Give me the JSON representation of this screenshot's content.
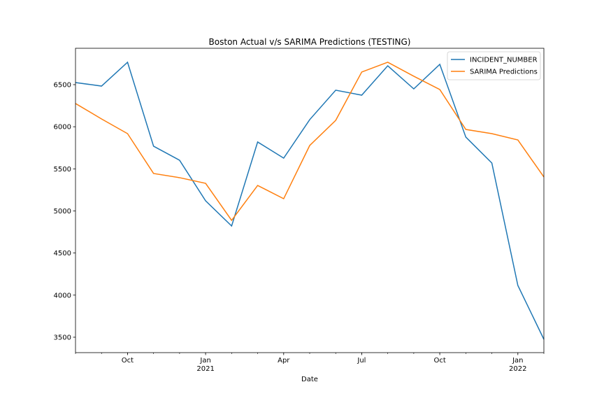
{
  "chart_data": {
    "type": "line",
    "title": "Boston Actual v/s SARIMA Predictions (TESTING)",
    "xlabel": "Date",
    "x": [
      "2020-08",
      "2020-09",
      "2020-10",
      "2020-11",
      "2020-12",
      "2021-01",
      "2021-02",
      "2021-03",
      "2021-04",
      "2021-05",
      "2021-06",
      "2021-07",
      "2021-08",
      "2021-09",
      "2021-10",
      "2021-11",
      "2021-12",
      "2022-01",
      "2022-02"
    ],
    "xticks": [
      {
        "value": "2020-10",
        "label": "Oct"
      },
      {
        "value": "2021-01",
        "label": "Jan\n2021"
      },
      {
        "value": "2021-04",
        "label": "Apr"
      },
      {
        "value": "2021-07",
        "label": "Jul"
      },
      {
        "value": "2021-10",
        "label": "Oct"
      },
      {
        "value": "2022-01",
        "label": "Jan\n2022"
      }
    ],
    "ylim": [
      3317,
      6932
    ],
    "yticks": [
      3500,
      4000,
      4500,
      5000,
      5500,
      6000,
      6500
    ],
    "legend": "upper right",
    "series": [
      {
        "name": "INCIDENT_NUMBER",
        "color": "#1f77b4",
        "values": [
          6525,
          6483,
          6766,
          5769,
          5602,
          5120,
          4821,
          5819,
          5627,
          6084,
          6434,
          6375,
          6724,
          6450,
          6741,
          5877,
          5569,
          4115,
          3475
        ]
      },
      {
        "name": "SARIMA Predictions",
        "color": "#ff7f0e",
        "values": [
          6276,
          6093,
          5918,
          5445,
          5395,
          5328,
          4888,
          5303,
          5145,
          5777,
          6076,
          6650,
          6766,
          6600,
          6442,
          5968,
          5918,
          5843,
          5403
        ]
      }
    ]
  }
}
